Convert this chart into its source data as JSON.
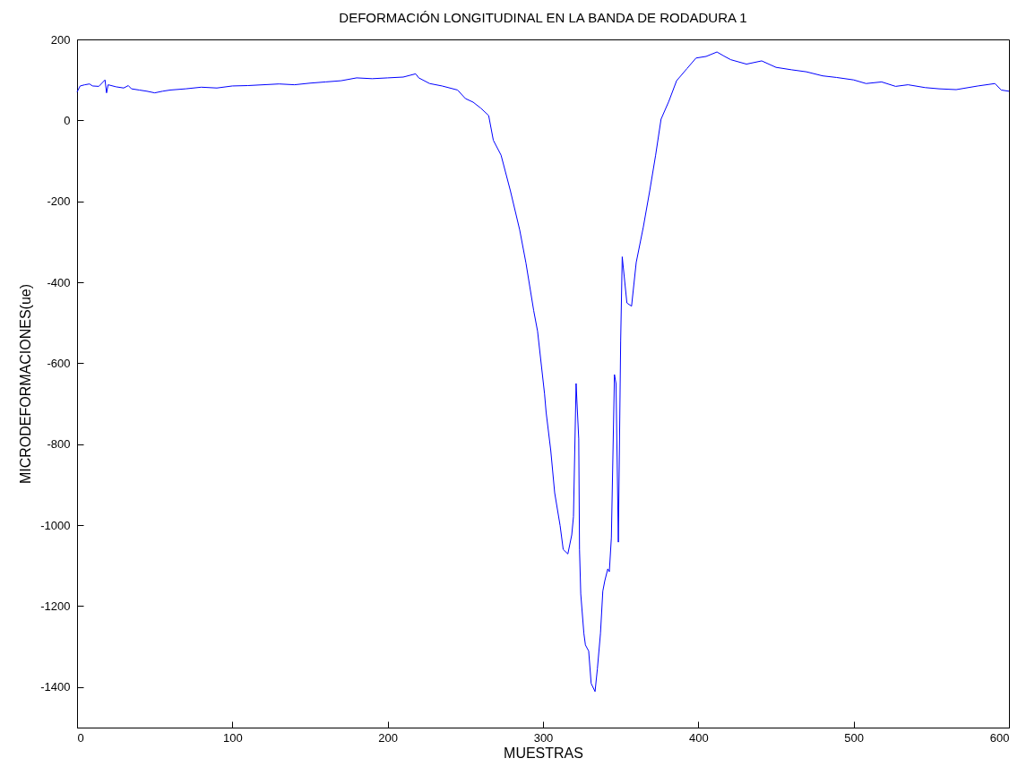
{
  "chart_data": {
    "type": "line",
    "title": "DEFORMACIÓN LONGITUDINAL EN LA BANDA DE RODADURA 1",
    "xlabel": "MUESTRAS",
    "ylabel": "MICRODEFORMACIONES(ue)",
    "xlim": [
      0,
      600
    ],
    "ylim": [
      -1500,
      200
    ],
    "xticks": [
      0,
      100,
      200,
      300,
      400,
      500,
      600
    ],
    "yticks": [
      -1400,
      -1200,
      -1000,
      -800,
      -600,
      -400,
      -200,
      0,
      200
    ],
    "grid": false,
    "legend": false,
    "marker": "none",
    "line_style": "solid",
    "series": [
      {
        "color": "#0000ff",
        "x": [
          0,
          2,
          5,
          8,
          10,
          14,
          18,
          19,
          20,
          25,
          30,
          33,
          35,
          40,
          45,
          50,
          55,
          60,
          70,
          80,
          90,
          100,
          110,
          120,
          130,
          140,
          150,
          160,
          170,
          180,
          190,
          200,
          210,
          218,
          220,
          227,
          235,
          240,
          245,
          250,
          255,
          260,
          265,
          268,
          273,
          279,
          285,
          289,
          294,
          296.5,
          301,
          302,
          305,
          307.5,
          311,
          313,
          316,
          318.5,
          319.6,
          321.3,
          323,
          323.5,
          324.3,
          326.3,
          327.3,
          329.4,
          331,
          333.5,
          335,
          337,
          338.5,
          339.8,
          341.7,
          342.7,
          344,
          346,
          347,
          348.5,
          350,
          351,
          354,
          357,
          360,
          364.6,
          368.7,
          372.5,
          376,
          381,
          386,
          392.7,
          398.5,
          405,
          412,
          416,
          420.8,
          431,
          440.8,
          450,
          460,
          469.6,
          480,
          489,
          500,
          508,
          518,
          527,
          535,
          546,
          555,
          566,
          580,
          591,
          595,
          600
        ],
        "values": [
          70,
          85,
          88,
          90,
          85,
          84,
          100,
          68,
          88,
          83,
          80,
          86,
          78,
          75,
          72,
          68,
          72,
          75,
          78,
          82,
          80,
          85,
          86,
          88,
          90,
          88,
          92,
          95,
          98,
          105,
          103,
          105,
          107,
          115,
          105,
          91,
          85,
          80,
          75,
          54,
          45,
          30,
          12,
          -49,
          -86,
          -174,
          -271,
          -352,
          -470,
          -521,
          -676,
          -721,
          -816,
          -920,
          -1001,
          -1060,
          -1071,
          -1024,
          -979,
          -650,
          -787,
          -1060,
          -1170,
          -1267,
          -1296,
          -1311,
          -1391,
          -1411,
          -1355,
          -1267,
          -1163,
          -1137,
          -1108,
          -1115,
          -1031,
          -628,
          -650,
          -1042,
          -544,
          -337,
          -451,
          -459,
          -351,
          -263,
          -174,
          -86,
          3,
          47,
          98,
          128,
          154,
          158,
          169,
          160,
          150,
          139,
          147,
          131,
          125,
          120,
          110,
          106,
          100,
          91,
          95,
          84,
          88,
          81,
          78,
          76,
          85,
          91,
          75,
          72
        ]
      }
    ]
  }
}
